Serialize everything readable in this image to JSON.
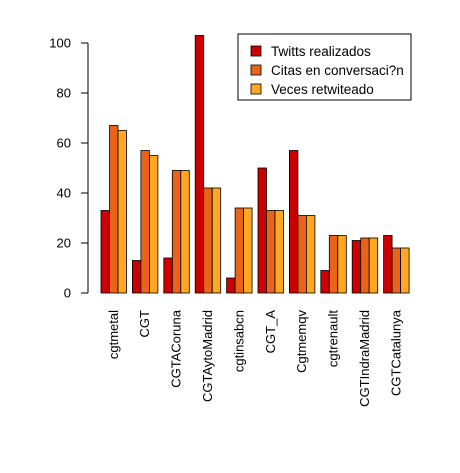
{
  "chart_data": {
    "type": "bar",
    "categories": [
      "cgtmetal",
      "CGT",
      "CGTACoruna",
      "CGTAytoMadrid",
      "cgtinsabcn",
      "CGT_A",
      "Cgtmemqv",
      "cgtrenault",
      "CGTIndraMadrid",
      "CGTCatalunya"
    ],
    "series": [
      {
        "name": "Twitts realizados",
        "values": [
          33,
          13,
          14,
          103,
          6,
          50,
          57,
          9,
          21,
          23
        ]
      },
      {
        "name": "Citas en conversaci?n",
        "values": [
          67,
          57,
          49,
          42,
          34,
          33,
          31,
          23,
          22,
          18
        ]
      },
      {
        "name": "Veces retwiteado",
        "values": [
          65,
          55,
          49,
          42,
          34,
          33,
          31,
          23,
          22,
          18
        ]
      }
    ],
    "colors": [
      "#cc0000",
      "#e8641a",
      "#ffa724"
    ],
    "yticks": [
      0,
      20,
      40,
      60,
      80,
      100
    ],
    "ylim": [
      0,
      104
    ],
    "title": "",
    "xlabel": "",
    "ylabel": "",
    "legend_position": "top-right",
    "grid": false
  }
}
